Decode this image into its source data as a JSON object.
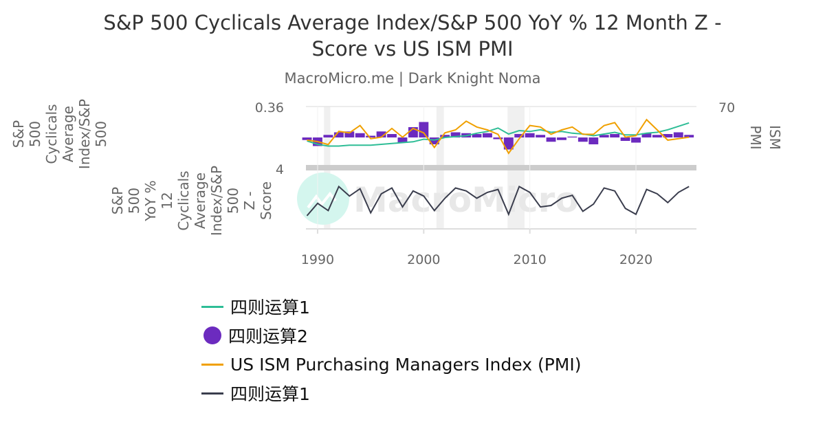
{
  "title_line1": "S&P 500 Cyclicals Average Index/S&P 500 YoY % 12 Month Z -",
  "title_line2": "Score vs US ISM PMI",
  "subtitle": "MacroMicro.me | Dark Knight Noma",
  "watermark": "MacroMicro",
  "chart_data": {
    "type": "line",
    "x": [
      1989,
      1990,
      1991,
      1992,
      1993,
      1994,
      1995,
      1996,
      1997,
      1998,
      1999,
      2000,
      2001,
      2002,
      2003,
      2004,
      2005,
      2006,
      2007,
      2008,
      2009,
      2010,
      2011,
      2012,
      2013,
      2014,
      2015,
      2016,
      2017,
      2018,
      2019,
      2020,
      2021,
      2022,
      2023,
      2024,
      2025
    ],
    "xlim": [
      1988.9,
      2025.7
    ],
    "x_ticks": [
      "1990",
      "2000",
      "2010",
      "2020"
    ],
    "recessions": [
      [
        1990.6,
        1991.2
      ],
      [
        2001.2,
        2001.9
      ],
      [
        2007.9,
        2009.5
      ]
    ],
    "top_pane": {
      "left_axis": {
        "label_lines": [
          "S&P",
          "500",
          "Cyclicals",
          "Average",
          "Index/S&P",
          "500"
        ],
        "top_tick": "0.36",
        "ylim": [
          -0.32,
          0.36
        ]
      },
      "right_axis": {
        "label_lines": [
          "ISM",
          "PMI"
        ],
        "top_tick": "70",
        "ylim": [
          30,
          70
        ]
      },
      "series": [
        {
          "name": "四则运算1",
          "type": "line",
          "axis": "left",
          "color": "#2ebd96",
          "values": [
            -0.04,
            -0.08,
            -0.1,
            -0.1,
            -0.09,
            -0.09,
            -0.09,
            -0.08,
            -0.07,
            -0.06,
            -0.05,
            -0.02,
            -0.03,
            0.0,
            0.01,
            0.02,
            0.05,
            0.07,
            0.11,
            0.04,
            0.08,
            0.07,
            0.09,
            0.06,
            0.07,
            0.05,
            0.04,
            0.02,
            0.04,
            0.06,
            0.03,
            0.03,
            0.05,
            0.06,
            0.09,
            0.13,
            0.17
          ]
        },
        {
          "name": "四则运算2",
          "type": "bar",
          "axis": "left",
          "color": "#6c2bbf",
          "values": [
            -0.03,
            -0.1,
            0.03,
            0.06,
            0.07,
            0.05,
            0.02,
            0.07,
            0.04,
            -0.06,
            0.12,
            0.18,
            -0.08,
            0.03,
            0.06,
            0.05,
            0.04,
            0.05,
            -0.02,
            -0.14,
            0.04,
            0.05,
            0.03,
            -0.05,
            -0.03,
            0.01,
            -0.05,
            -0.08,
            0.03,
            0.04,
            -0.04,
            -0.06,
            0.05,
            0.03,
            0.04,
            0.06,
            0.03
          ]
        },
        {
          "name": "US ISM Purchasing Managers Index (PMI)",
          "type": "line",
          "axis": "right",
          "color": "#f0a000",
          "values": [
            47,
            46,
            44,
            53,
            52,
            57,
            48,
            49,
            55,
            49,
            55,
            52,
            42,
            52,
            54,
            60,
            56,
            54,
            51,
            38,
            48,
            57,
            56,
            51,
            54,
            56,
            51,
            51,
            57,
            59,
            49,
            50,
            61,
            54,
            47,
            48,
            49
          ]
        }
      ]
    },
    "bottom_pane": {
      "left_axis": {
        "label_lines": [
          "S&P",
          "500",
          "YoY %",
          "12",
          "Cyclicals",
          "Average",
          "Index/S&P",
          "500",
          "Z -",
          "Score"
        ],
        "top_tick": "4",
        "ylim": [
          -4,
          4
        ]
      },
      "series": [
        {
          "name": "四则运算1",
          "type": "line",
          "color": "#3a3d4d",
          "values": [
            -2.2,
            -0.5,
            -1.5,
            1.8,
            0.5,
            1.5,
            -1.8,
            0.8,
            1.6,
            -1.0,
            1.2,
            0.5,
            -1.5,
            0.2,
            1.6,
            1.2,
            0.2,
            1.0,
            1.4,
            -2.0,
            1.8,
            1.0,
            -1.0,
            -0.8,
            0.2,
            0.6,
            -1.6,
            -0.6,
            1.6,
            1.2,
            -1.2,
            -2.0,
            1.4,
            0.8,
            -0.4,
            1.0,
            1.8
          ]
        }
      ]
    },
    "legend": [
      {
        "label": "四则运算1",
        "marker": "line",
        "color": "#2ebd96"
      },
      {
        "label": "四则运算2",
        "marker": "dot",
        "color": "#6c2bbf"
      },
      {
        "label": "US ISM Purchasing Managers Index (PMI)",
        "marker": "line",
        "color": "#f0a000"
      },
      {
        "label": "四则运算1",
        "marker": "line",
        "color": "#3a3d4d"
      }
    ],
    "legend_position": "bottom-left",
    "grid": true
  }
}
